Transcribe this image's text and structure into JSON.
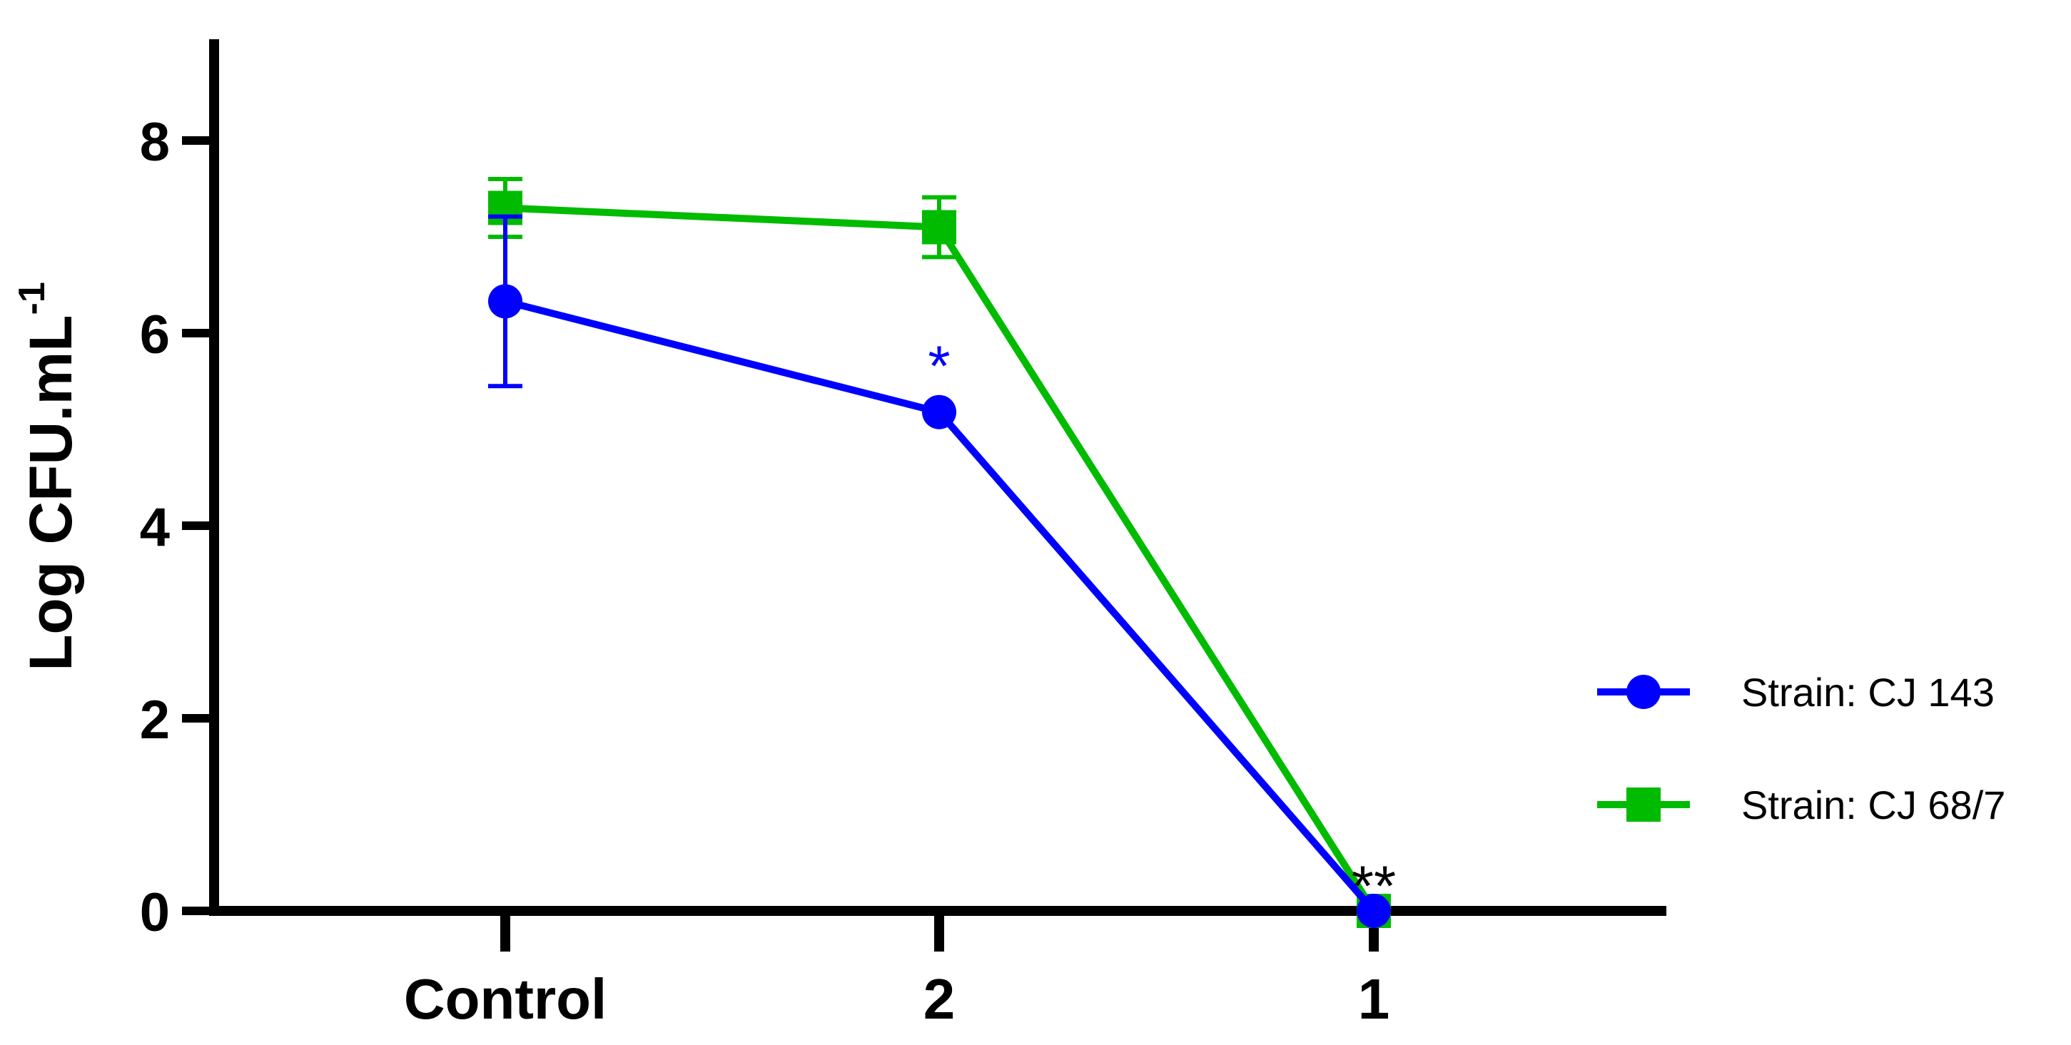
{
  "chart_data": {
    "type": "line",
    "title": "",
    "categories": [
      "Control",
      "2",
      "1"
    ],
    "xlabel": "",
    "ylabel": "Log CFU.mL",
    "ylabel_superscript": "-1",
    "ylim": [
      0,
      9
    ],
    "yticks": [
      0,
      2,
      4,
      6,
      8
    ],
    "grid": false,
    "legend_position": "right",
    "series": [
      {
        "name": "Strain: CJ 143",
        "color": "#0000ff",
        "marker": "circle",
        "values": [
          6.33,
          5.18,
          0
        ],
        "errors": [
          0.88,
          0,
          0
        ]
      },
      {
        "name": "Strain: CJ 68/7",
        "color": "#00bb00",
        "marker": "square",
        "values": [
          7.3,
          7.1,
          0
        ],
        "errors": [
          0.3,
          0.31,
          0
        ]
      }
    ],
    "annotations": [
      {
        "text": "*",
        "category": "2",
        "y": 5.9,
        "color": "#0000ff"
      },
      {
        "text": "**",
        "category": "1",
        "y": 0.5,
        "color": "#000000"
      }
    ]
  }
}
